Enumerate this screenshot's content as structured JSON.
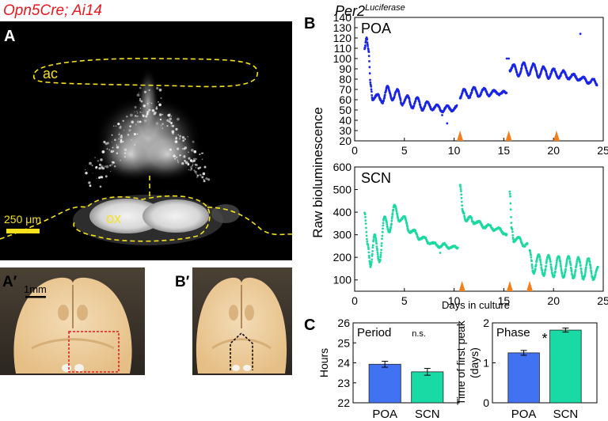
{
  "figure": {
    "mouse_label": "Opn5Cre; Ai14",
    "reporter_label": "Per2",
    "reporter_superscript": "Luciferase",
    "colors": {
      "red": "#e8181f",
      "blue": "#1a25e6",
      "teal": "#1dd9a2",
      "orange": "#f07f1c",
      "yellow": "#f5e21c",
      "bar_blue": "#4072f2",
      "bar_teal": "#19d9a5"
    }
  },
  "panelA": {
    "letter": "A",
    "label_ac": "ac",
    "label_ox": "ox",
    "scale_label": "250 μm"
  },
  "panelA2": {
    "letter": "A′",
    "scale_label": "1mm"
  },
  "panelB2": {
    "letter": "B′"
  },
  "panelB": {
    "letter": "B",
    "ylabel": "Raw bioluminescence",
    "xlabel": "Days in culture"
  },
  "panelC": {
    "letter": "C"
  },
  "chart_data": [
    {
      "type": "scatter",
      "title": "POA",
      "series_color": "#1a25e6",
      "xlim": [
        0,
        25
      ],
      "ylim": [
        20,
        140
      ],
      "x_ticks": [
        0,
        5,
        10,
        15,
        20,
        25
      ],
      "y_ticks": [
        20,
        30,
        40,
        50,
        60,
        70,
        80,
        90,
        100,
        110,
        120,
        130,
        140
      ],
      "x_ticklabels": [
        "0",
        "5",
        "10",
        "15",
        "20",
        "25"
      ],
      "y_ticklabels": [
        "20",
        "30",
        "40",
        "50",
        "60",
        "70",
        "80",
        "90",
        "100",
        "110",
        "120",
        "130",
        "140"
      ],
      "segments": [
        {
          "x_start": 1.0,
          "x_end": 10.4,
          "rhythm": [
            [
              1.0,
              110
            ],
            [
              1.2,
              120
            ],
            [
              1.4,
              108
            ],
            [
              1.6,
              75
            ],
            [
              1.8,
              60
            ],
            [
              2.3,
              65
            ],
            [
              2.8,
              57
            ],
            [
              3.3,
              73
            ],
            [
              3.8,
              60
            ],
            [
              4.3,
              70
            ],
            [
              4.8,
              55
            ],
            [
              5.3,
              64
            ],
            [
              5.8,
              52
            ],
            [
              6.3,
              62
            ],
            [
              6.8,
              50
            ],
            [
              7.3,
              58
            ],
            [
              7.8,
              50
            ],
            [
              8.3,
              55
            ],
            [
              8.8,
              48
            ],
            [
              9.3,
              54
            ],
            [
              9.8,
              49
            ],
            [
              10.3,
              54
            ]
          ]
        },
        {
          "x_start": 10.6,
          "x_end": 15.3,
          "rhythm": [
            [
              10.6,
              62
            ],
            [
              11.0,
              70
            ],
            [
              11.5,
              62
            ],
            [
              12.0,
              72
            ],
            [
              12.5,
              63
            ],
            [
              13.0,
              71
            ],
            [
              13.5,
              64
            ],
            [
              14.0,
              69
            ],
            [
              14.5,
              65
            ],
            [
              15.0,
              68
            ],
            [
              15.3,
              66
            ]
          ]
        },
        {
          "x_start": 15.6,
          "x_end": 24.4,
          "rhythm": [
            [
              15.6,
              88
            ],
            [
              16.0,
              94
            ],
            [
              16.5,
              83
            ],
            [
              17.0,
              96
            ],
            [
              17.5,
              84
            ],
            [
              18.0,
              95
            ],
            [
              18.5,
              82
            ],
            [
              19.0,
              92
            ],
            [
              19.5,
              81
            ],
            [
              20.0,
              90
            ],
            [
              20.5,
              81
            ],
            [
              21.0,
              88
            ],
            [
              21.5,
              80
            ],
            [
              22.0,
              85
            ],
            [
              22.5,
              79
            ],
            [
              23.0,
              82
            ],
            [
              23.5,
              76
            ],
            [
              24.0,
              80
            ],
            [
              24.4,
              74
            ]
          ]
        }
      ],
      "outliers": [
        [
          15.3,
          100
        ],
        [
          15.5,
          100
        ],
        [
          22.7,
          124
        ],
        [
          9.3,
          37
        ],
        [
          8.8,
          45
        ]
      ],
      "medium_changes": [
        10.6,
        15.5,
        20.3
      ]
    },
    {
      "type": "scatter",
      "title": "SCN",
      "series_color": "#1dd9a2",
      "xlim": [
        0,
        25
      ],
      "ylim": [
        50,
        600
      ],
      "x_ticks": [
        0,
        5,
        10,
        15,
        20,
        25
      ],
      "y_ticks": [
        100,
        200,
        300,
        400,
        500,
        600
      ],
      "x_ticklabels": [
        "0",
        "5",
        "10",
        "15",
        "20",
        "25"
      ],
      "y_ticklabels": [
        "100",
        "200",
        "300",
        "400",
        "500",
        "600"
      ],
      "segments": [
        {
          "x_start": 1.0,
          "x_end": 10.4,
          "rhythm": [
            [
              1.0,
              400
            ],
            [
              1.3,
              260
            ],
            [
              1.6,
              160
            ],
            [
              2.0,
              300
            ],
            [
              2.5,
              180
            ],
            [
              3.0,
              380
            ],
            [
              3.5,
              310
            ],
            [
              4.0,
              430
            ],
            [
              4.5,
              360
            ],
            [
              5.0,
              380
            ],
            [
              5.5,
              310
            ],
            [
              6.0,
              320
            ],
            [
              6.5,
              280
            ],
            [
              7.0,
              290
            ],
            [
              7.5,
              260
            ],
            [
              8.0,
              265
            ],
            [
              8.5,
              245
            ],
            [
              9.0,
              260
            ],
            [
              9.5,
              240
            ],
            [
              10.0,
              250
            ],
            [
              10.4,
              240
            ]
          ]
        },
        {
          "x_start": 10.6,
          "x_end": 15.3,
          "rhythm": [
            [
              10.6,
              520
            ],
            [
              10.9,
              400
            ],
            [
              11.2,
              360
            ],
            [
              11.6,
              380
            ],
            [
              12.0,
              350
            ],
            [
              12.5,
              360
            ],
            [
              13.0,
              330
            ],
            [
              13.5,
              345
            ],
            [
              14.0,
              320
            ],
            [
              14.5,
              330
            ],
            [
              15.0,
              305
            ],
            [
              15.3,
              300
            ]
          ]
        },
        {
          "x_start": 15.6,
          "x_end": 17.4,
          "rhythm": [
            [
              15.6,
              490
            ],
            [
              15.8,
              330
            ],
            [
              16.0,
              270
            ],
            [
              16.5,
              290
            ],
            [
              17.0,
              250
            ],
            [
              17.4,
              260
            ]
          ]
        },
        {
          "x_start": 17.6,
          "x_end": 24.5,
          "rhythm": [
            [
              17.6,
              230
            ],
            [
              18.0,
              130
            ],
            [
              18.5,
              210
            ],
            [
              19.0,
              120
            ],
            [
              19.5,
              210
            ],
            [
              20.0,
              115
            ],
            [
              20.5,
              205
            ],
            [
              21.0,
              110
            ],
            [
              21.5,
              205
            ],
            [
              22.0,
              108
            ],
            [
              22.5,
              200
            ],
            [
              23.0,
              105
            ],
            [
              23.5,
              195
            ],
            [
              24.0,
              102
            ],
            [
              24.5,
              160
            ]
          ]
        }
      ],
      "outliers": [
        [
          8.6,
          220
        ],
        [
          10.1,
          250
        ]
      ],
      "medium_changes": [
        10.8,
        15.6,
        17.6
      ]
    },
    {
      "type": "bar",
      "title": "Period",
      "annotation": "n.s.",
      "ylabel": "Hours",
      "categories": [
        "POA",
        "SCN"
      ],
      "values": [
        23.93,
        23.55
      ],
      "errors": [
        0.15,
        0.17
      ],
      "ylim": [
        22,
        26
      ],
      "y_ticks": [
        22,
        23,
        24,
        25,
        26
      ],
      "y_ticklabels": [
        "22",
        "23",
        "24",
        "25",
        "26"
      ]
    },
    {
      "type": "bar",
      "title": "Phase",
      "annotation": "*",
      "ylabel": "Time of first peak (days)",
      "categories": [
        "POA",
        "SCN"
      ],
      "values": [
        1.25,
        1.82
      ],
      "errors": [
        0.06,
        0.05
      ],
      "ylim": [
        0,
        2
      ],
      "y_ticks": [
        0,
        1,
        2
      ],
      "y_ticklabels": [
        "0",
        "1",
        "2"
      ]
    }
  ]
}
